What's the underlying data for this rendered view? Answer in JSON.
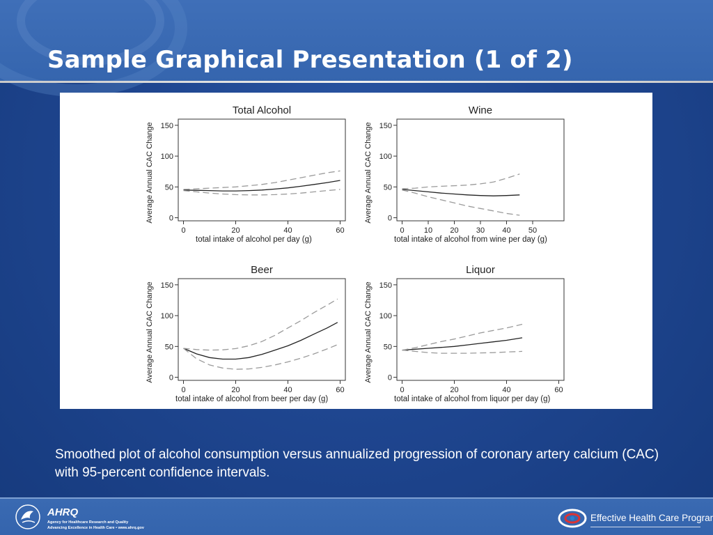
{
  "slide": {
    "title": "Sample Graphical Presentation (1 of 2)",
    "caption": "Smoothed plot of alcohol consumption versus annualized progression of coronary artery calcium (CAC) with 95-percent confidence intervals."
  },
  "footer": {
    "ahrq_mark": "AHRQ",
    "ahrq_line1": "Agency for Healthcare Research and Quality",
    "ahrq_line2": "Advancing Excellence in Health Care • www.ahrq.gov",
    "ehc_label": "Effective Health Care Program"
  },
  "colors": {
    "estimate_line": "#222222",
    "ci_line": "#9a9a9a"
  },
  "icons": [
    "hhs-eagle-icon",
    "ahrq-logo-icon",
    "ehc-swirl-icon"
  ],
  "chart_data": [
    {
      "type": "line",
      "title": "Total Alcohol",
      "xlabel": "total intake of alcohol per day (g)",
      "ylabel": "Average Annual CAC Change",
      "xlim": [
        -2,
        62
      ],
      "ylim": [
        -5,
        160
      ],
      "xticks": [
        0,
        20,
        40,
        60
      ],
      "yticks": [
        0,
        50,
        100,
        150
      ],
      "grid": false,
      "x": [
        0,
        5,
        10,
        15,
        20,
        25,
        30,
        35,
        40,
        45,
        50,
        55,
        60
      ],
      "series": [
        {
          "role": "estimate",
          "values": [
            45,
            44.5,
            44,
            43.5,
            43.5,
            44,
            45,
            46.5,
            48.5,
            51,
            54,
            57,
            60.5
          ]
        },
        {
          "role": "upper",
          "values": [
            46,
            47,
            48,
            49,
            50,
            52,
            54,
            57,
            61,
            65,
            69,
            73,
            76
          ]
        },
        {
          "role": "lower",
          "values": [
            44,
            42,
            40,
            38.5,
            37.5,
            37,
            37,
            37.5,
            38.5,
            40,
            42,
            44,
            46
          ]
        }
      ]
    },
    {
      "type": "line",
      "title": "Wine",
      "xlabel": "total intake of alcohol from wine per day (g)",
      "ylabel": "Average Annual CAC Change",
      "xlim": [
        -2,
        62
      ],
      "ylim": [
        -5,
        160
      ],
      "xticks": [
        0,
        10,
        20,
        30,
        40,
        50
      ],
      "yticks": [
        0,
        50,
        100,
        150
      ],
      "grid": false,
      "x": [
        0,
        5,
        10,
        15,
        20,
        25,
        30,
        35,
        40,
        45
      ],
      "series": [
        {
          "role": "estimate",
          "values": [
            46,
            44,
            42,
            40,
            38.5,
            37,
            36,
            35.5,
            36,
            37
          ]
        },
        {
          "role": "upper",
          "values": [
            47,
            48,
            50,
            51,
            52,
            53,
            55,
            58,
            64,
            71
          ]
        },
        {
          "role": "lower",
          "values": [
            45,
            40,
            34,
            29,
            24,
            19,
            15,
            11,
            7,
            4
          ]
        }
      ]
    },
    {
      "type": "line",
      "title": "Beer",
      "xlabel": "total intake of alcohol from beer per day (g)",
      "ylabel": "Average Annual CAC Change",
      "xlim": [
        -2,
        62
      ],
      "ylim": [
        -5,
        160
      ],
      "xticks": [
        0,
        20,
        40,
        60
      ],
      "yticks": [
        0,
        50,
        100,
        150
      ],
      "grid": false,
      "x": [
        0,
        5,
        10,
        15,
        20,
        25,
        30,
        35,
        40,
        45,
        50,
        55,
        59
      ],
      "series": [
        {
          "role": "estimate",
          "values": [
            47,
            38,
            32,
            29.5,
            29.5,
            32,
            37,
            44,
            51,
            60,
            70,
            80,
            89
          ]
        },
        {
          "role": "upper",
          "values": [
            47,
            45,
            44,
            44.5,
            46.5,
            51,
            58,
            68,
            80,
            92,
            105,
            117,
            127
          ]
        },
        {
          "role": "lower",
          "values": [
            47,
            30,
            20,
            15,
            13,
            13.5,
            16,
            20,
            25,
            31,
            38,
            46,
            53
          ]
        }
      ]
    },
    {
      "type": "line",
      "title": "Liquor",
      "xlabel": "total intake of alcohol from liquor per day (g)",
      "ylabel": "Average Annual CAC Change",
      "xlim": [
        -2,
        62
      ],
      "ylim": [
        -5,
        160
      ],
      "xticks": [
        0,
        20,
        40,
        60
      ],
      "yticks": [
        0,
        50,
        100,
        150
      ],
      "grid": false,
      "x": [
        0,
        5,
        10,
        15,
        20,
        25,
        30,
        35,
        40,
        46
      ],
      "series": [
        {
          "role": "estimate",
          "values": [
            44,
            45.5,
            47,
            48.5,
            50,
            52.5,
            55,
            57.5,
            60,
            64
          ]
        },
        {
          "role": "upper",
          "values": [
            44,
            48,
            53,
            58,
            62,
            67,
            72,
            76,
            80,
            86
          ]
        },
        {
          "role": "lower",
          "values": [
            44,
            42,
            40,
            39,
            39,
            39,
            39.5,
            40,
            41,
            42
          ]
        }
      ]
    }
  ]
}
